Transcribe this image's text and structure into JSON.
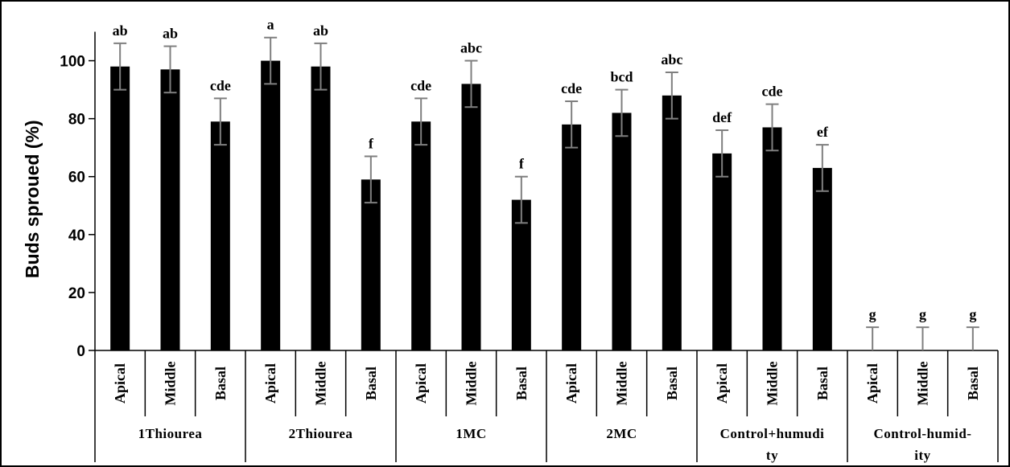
{
  "chart_data": {
    "type": "bar",
    "ylabel": "Buds sproued (%)",
    "ylim": [
      0,
      110
    ],
    "yticks": [
      0,
      20,
      40,
      60,
      80,
      100
    ],
    "error_bar": 8,
    "grid": false,
    "groups": [
      {
        "name": "1Thiourea",
        "name_lines": [
          "1Thiourea"
        ],
        "bars": [
          {
            "category": "Apical",
            "value": 98,
            "letter": "ab"
          },
          {
            "category": "Middle",
            "value": 97,
            "letter": "ab"
          },
          {
            "category": "Basal",
            "value": 79,
            "letter": "cde"
          }
        ]
      },
      {
        "name": "2Thiourea",
        "name_lines": [
          "2Thiourea"
        ],
        "bars": [
          {
            "category": "Apical",
            "value": 100,
            "letter": "a"
          },
          {
            "category": "Middle",
            "value": 98,
            "letter": "ab"
          },
          {
            "category": "Basal",
            "value": 59,
            "letter": "f"
          }
        ]
      },
      {
        "name": "1MC",
        "name_lines": [
          "1MC"
        ],
        "bars": [
          {
            "category": "Apical",
            "value": 79,
            "letter": "cde"
          },
          {
            "category": "Middle",
            "value": 92,
            "letter": "abc"
          },
          {
            "category": "Basal",
            "value": 52,
            "letter": "f"
          }
        ]
      },
      {
        "name": "2MC",
        "name_lines": [
          "2MC"
        ],
        "bars": [
          {
            "category": "Apical",
            "value": 78,
            "letter": "cde"
          },
          {
            "category": "Middle",
            "value": 82,
            "letter": "bcd"
          },
          {
            "category": "Basal",
            "value": 88,
            "letter": "abc"
          }
        ]
      },
      {
        "name": "Control+humudity",
        "name_lines": [
          "Control+humudi",
          "ty"
        ],
        "bars": [
          {
            "category": "Apical",
            "value": 68,
            "letter": "def"
          },
          {
            "category": "Middle",
            "value": 77,
            "letter": "cde"
          },
          {
            "category": "Basal",
            "value": 63,
            "letter": "ef"
          }
        ]
      },
      {
        "name": "Control-humid-ity",
        "name_lines": [
          "Control-humid-",
          "ity"
        ],
        "bars": [
          {
            "category": "Apical",
            "value": 0,
            "letter": "g"
          },
          {
            "category": "Middle",
            "value": 0,
            "letter": "g"
          },
          {
            "category": "Basal",
            "value": 0,
            "letter": "g"
          }
        ]
      }
    ]
  }
}
